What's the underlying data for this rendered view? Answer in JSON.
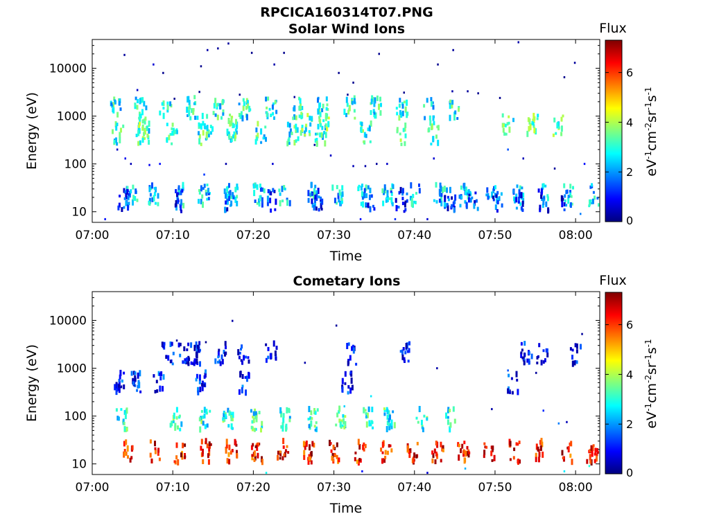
{
  "figure_title": "RPCICA160314T07.PNG",
  "colormap": [
    "#00007f",
    "#0000ff",
    "#007fff",
    "#00ffff",
    "#7fff7f",
    "#ffff00",
    "#ff7f00",
    "#ff0000",
    "#7f0000"
  ],
  "chart_data": [
    {
      "type": "heatmap",
      "title": "Solar Wind Ions",
      "xlabel": "Time",
      "ylabel": "Energy (eV)",
      "y_scale": "log",
      "ylim": [
        6,
        40000
      ],
      "xlim": [
        "07:00",
        "08:03"
      ],
      "x_ticks": [
        "07:00",
        "07:10",
        "07:20",
        "07:30",
        "07:40",
        "07:50",
        "08:00"
      ],
      "y_ticks": [
        "10",
        "100",
        "1000",
        "10000"
      ],
      "y_tick_values": [
        10,
        100,
        1000,
        10000
      ],
      "colorbar": {
        "label": "Flux",
        "unit": "eV-1cm-2sr-1s-1",
        "range": [
          0,
          7.3
        ],
        "ticks": [
          "0",
          "2",
          "4",
          "6"
        ]
      },
      "clusters": [
        {
          "e": 1500,
          "v": 2.8,
          "t": [
            2.5,
            5.6,
            8.7,
            12,
            15.3,
            18.5,
            21.8,
            25,
            28.3,
            31.6,
            34.8,
            38.1,
            41.4,
            44.6
          ]
        },
        {
          "e": 430,
          "v": 3.0,
          "t": [
            2.8,
            6,
            9.5,
            13.5,
            17,
            20.5,
            24.5,
            28,
            33.5,
            38,
            42
          ]
        },
        {
          "e": 650,
          "v": 3.3,
          "t": [
            5.8,
            14,
            17,
            26.2,
            28.3,
            51.2,
            54.3,
            57.5
          ]
        },
        {
          "e": 22,
          "v": 2.4,
          "t": [
            4.5,
            7.3,
            10.5,
            13.5,
            17,
            20.3,
            23.5,
            26.8,
            30,
            33.2,
            36.3,
            39.6,
            42.7,
            45.9,
            49.2,
            52.4,
            55.5,
            58.7,
            61.9
          ]
        },
        {
          "e": 17,
          "v": 1.2,
          "t": [
            3.5,
            10.5,
            16.5,
            22,
            27.5,
            34,
            38,
            44,
            47,
            49.8,
            52.4,
            55.6,
            58.4
          ]
        }
      ],
      "scatter": [
        {
          "t": 3.9,
          "e": 19000,
          "v": 0.2
        },
        {
          "t": 7.5,
          "e": 12000,
          "v": 0.6
        },
        {
          "t": 8.7,
          "e": 8000,
          "v": 0.1
        },
        {
          "t": 13.4,
          "e": 11000,
          "v": 0.1
        },
        {
          "t": 14.2,
          "e": 24000,
          "v": 0.3
        },
        {
          "t": 15.5,
          "e": 26000,
          "v": 0.2
        },
        {
          "t": 16.8,
          "e": 33000,
          "v": 0.2
        },
        {
          "t": 19.7,
          "e": 21000,
          "v": 0.1
        },
        {
          "t": 23.7,
          "e": 21000,
          "v": 0.1
        },
        {
          "t": 22.5,
          "e": 12000,
          "v": 0.3
        },
        {
          "t": 30.5,
          "e": 8000,
          "v": 0.1
        },
        {
          "t": 32.3,
          "e": 5000,
          "v": 0.1
        },
        {
          "t": 35.5,
          "e": 20000,
          "v": 0.1
        },
        {
          "t": 42.8,
          "e": 12000,
          "v": 0.1
        },
        {
          "t": 44.7,
          "e": 24000,
          "v": 0.2
        },
        {
          "t": 52.8,
          "e": 35000,
          "v": 0.3
        },
        {
          "t": 58.5,
          "e": 6500,
          "v": 0.1
        },
        {
          "t": 59.8,
          "e": 13000,
          "v": 0.2
        },
        {
          "t": 5.5,
          "e": 3500,
          "v": 0.5
        },
        {
          "t": 13.2,
          "e": 3200,
          "v": 0.1
        },
        {
          "t": 18.2,
          "e": 2800,
          "v": 0.1
        },
        {
          "t": 25,
          "e": 2500,
          "v": 0.2
        },
        {
          "t": 31.6,
          "e": 2800,
          "v": 0.1
        },
        {
          "t": 38.6,
          "e": 3100,
          "v": 0.1
        },
        {
          "t": 44.6,
          "e": 3300,
          "v": 0.3
        },
        {
          "t": 46.5,
          "e": 3300,
          "v": 0.2
        },
        {
          "t": 47.8,
          "e": 3000,
          "v": 0.1
        },
        {
          "t": 50.5,
          "e": 2400,
          "v": 0.1
        },
        {
          "t": 10.1,
          "e": 2300,
          "v": 0.1
        },
        {
          "t": 3,
          "e": 200,
          "v": 0.5
        },
        {
          "t": 4,
          "e": 130,
          "v": 0.8
        },
        {
          "t": 4.7,
          "e": 100,
          "v": 0.4
        },
        {
          "t": 7,
          "e": 95,
          "v": 0.8
        },
        {
          "t": 8.3,
          "e": 100,
          "v": 1.0
        },
        {
          "t": 16.5,
          "e": 100,
          "v": 0.3
        },
        {
          "t": 22.3,
          "e": 100,
          "v": 0.6
        },
        {
          "t": 29.5,
          "e": 150,
          "v": 0.5
        },
        {
          "t": 32.3,
          "e": 90,
          "v": 0.4
        },
        {
          "t": 33.8,
          "e": 90,
          "v": 0.3
        },
        {
          "t": 35.2,
          "e": 100,
          "v": 0.2
        },
        {
          "t": 36.5,
          "e": 100,
          "v": 0.5
        },
        {
          "t": 42.3,
          "e": 130,
          "v": 0.6
        },
        {
          "t": 51.5,
          "e": 200,
          "v": 1.5
        },
        {
          "t": 53.4,
          "e": 130,
          "v": 0.4
        },
        {
          "t": 57.3,
          "e": 80,
          "v": 0.2
        },
        {
          "t": 61,
          "e": 100,
          "v": 1.0
        },
        {
          "t": 27.5,
          "e": 250,
          "v": 0.2
        },
        {
          "t": 13.8,
          "e": 60,
          "v": 1.3
        },
        {
          "t": 1.5,
          "e": 7,
          "v": 1.0
        },
        {
          "t": 37.5,
          "e": 7,
          "v": 1.2
        },
        {
          "t": 41.5,
          "e": 7,
          "v": 0.6
        },
        {
          "t": 33.2,
          "e": 7,
          "v": 1.0
        },
        {
          "t": 60.5,
          "e": 9,
          "v": 1.8
        },
        {
          "t": 61.9,
          "e": 15,
          "v": 2.2
        }
      ]
    },
    {
      "type": "heatmap",
      "title": "Cometary Ions",
      "xlabel": "Time",
      "ylabel": "Energy (eV)",
      "y_scale": "log",
      "ylim": [
        6,
        40000
      ],
      "xlim": [
        "07:00",
        "08:03"
      ],
      "x_ticks": [
        "07:00",
        "07:10",
        "07:20",
        "07:30",
        "07:40",
        "07:50",
        "08:00"
      ],
      "y_ticks": [
        "10",
        "100",
        "1000",
        "10000"
      ],
      "y_tick_values": [
        10,
        100,
        1000,
        10000
      ],
      "colorbar": {
        "label": "Flux",
        "unit": "eV-1cm-2sr-1s-1",
        "range": [
          0,
          7.3
        ],
        "ticks": [
          "0",
          "2",
          "4",
          "6"
        ]
      },
      "clusters": [
        {
          "e": 18,
          "v": 6.3,
          "t": [
            4.2,
            7.4,
            10.5,
            13.7,
            16.9,
            20.1,
            23.3,
            26.5,
            29.7,
            32.9,
            36.1,
            39.3,
            42.5,
            45.7,
            48.9,
            52.1,
            55.3,
            58.5,
            61.7
          ]
        },
        {
          "e": 85,
          "v": 3.0,
          "t": [
            3.3,
            10,
            13.5,
            16.5,
            20,
            23.5,
            27,
            30.5,
            34,
            36.5,
            40.5,
            44
          ]
        },
        {
          "e": 500,
          "v": 1.0,
          "t": [
            3,
            5,
            7.8,
            13,
            18.5,
            31.3,
            51.8
          ]
        },
        {
          "e": 2000,
          "v": 0.8,
          "t": [
            9,
            11,
            12.4,
            15.5,
            18.4,
            21.8,
            31.8,
            38.5,
            53.5,
            55.5,
            59.6
          ]
        }
      ],
      "scatter": [
        {
          "t": 17.3,
          "e": 9800,
          "v": 0.3
        },
        {
          "t": 30.2,
          "e": 7800,
          "v": 0.2
        },
        {
          "t": 60.7,
          "e": 5200,
          "v": 0.2
        },
        {
          "t": 10.4,
          "e": 3800,
          "v": 0.2
        },
        {
          "t": 14,
          "e": 3500,
          "v": 0.1
        },
        {
          "t": 26.3,
          "e": 1300,
          "v": 0.3
        },
        {
          "t": 42.7,
          "e": 1000,
          "v": 0.3
        },
        {
          "t": 51.5,
          "e": 900,
          "v": 1.5
        },
        {
          "t": 55,
          "e": 800,
          "v": 0.2
        },
        {
          "t": 31.2,
          "e": 160,
          "v": 2.4
        },
        {
          "t": 34.5,
          "e": 260,
          "v": 2.6
        },
        {
          "t": 49.5,
          "e": 140,
          "v": 0.3
        },
        {
          "t": 55.9,
          "e": 130,
          "v": 1.2
        },
        {
          "t": 57.8,
          "e": 70,
          "v": 1.8
        },
        {
          "t": 58.8,
          "e": 75,
          "v": 0.4
        },
        {
          "t": 33.4,
          "e": 7,
          "v": 1.0
        },
        {
          "t": 41.5,
          "e": 6.5,
          "v": 0.6
        },
        {
          "t": 46.2,
          "e": 8,
          "v": 2.2
        },
        {
          "t": 58.5,
          "e": 7,
          "v": 2.6
        },
        {
          "t": 61.6,
          "e": 9,
          "v": 3.0
        },
        {
          "t": 21.5,
          "e": 6.5,
          "v": 2.8
        }
      ]
    }
  ]
}
